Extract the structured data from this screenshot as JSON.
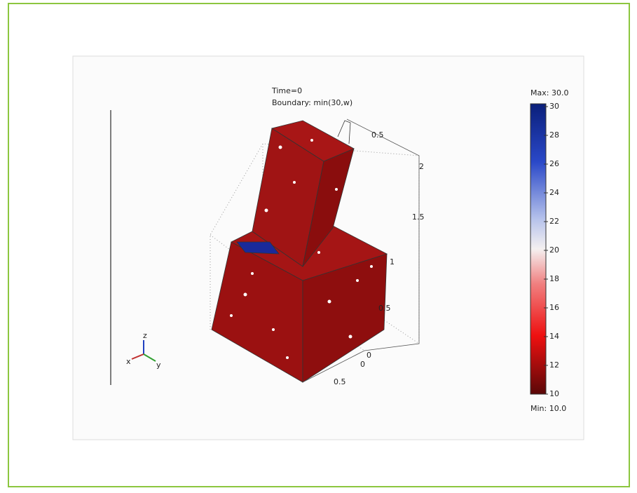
{
  "header": {
    "time": "Time=0",
    "expression": "Boundary: min(30,w)"
  },
  "colorbar": {
    "max_label": "Max: 30.0",
    "min_label": "Min: 10.0",
    "ticks": [
      30,
      28,
      26,
      24,
      22,
      20,
      18,
      16,
      14,
      12,
      10
    ]
  },
  "axes": {
    "tick_labels": [
      "0.5",
      "2",
      "1.5",
      "1",
      "0.5",
      "0",
      "0",
      "0.5"
    ]
  },
  "triad": {
    "x": "x",
    "y": "y",
    "z": "z"
  }
}
